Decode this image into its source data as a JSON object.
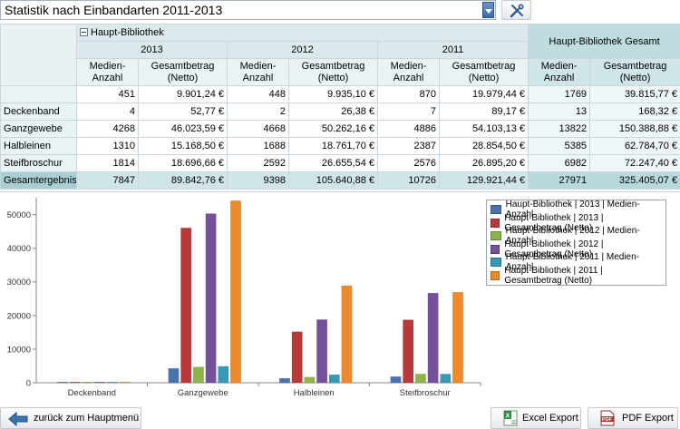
{
  "top": {
    "report_select_value": "Statistik nach Einbandarten 2011-2013",
    "tool_icon": "tools-icon"
  },
  "pivot": {
    "group_label": "Haupt-Bibliothek",
    "total_label": "Haupt-Bibliothek Gesamt",
    "years": [
      "2013",
      "2012",
      "2011"
    ],
    "col_count_label": "Medien-\nAnzahl",
    "col_amount_label": "Gesamtbetrag\n(Netto)",
    "rows": [
      {
        "label": "",
        "cells": [
          "451",
          "9.901,24 €",
          "448",
          "9.935,10 €",
          "870",
          "19.979,44 €",
          "1769",
          "39.815,77 €"
        ]
      },
      {
        "label": "Deckenband",
        "cells": [
          "4",
          "52,77 €",
          "2",
          "26,38 €",
          "7",
          "89,17 €",
          "13",
          "168,32 €"
        ]
      },
      {
        "label": "Ganzgewebe",
        "cells": [
          "4268",
          "46.023,59 €",
          "4668",
          "50.262,16 €",
          "4886",
          "54.103,13 €",
          "13822",
          "150.388,88 €"
        ]
      },
      {
        "label": "Halbleinen",
        "cells": [
          "1310",
          "15.168,50 €",
          "1688",
          "18.761,70 €",
          "2387",
          "28.854,50 €",
          "5385",
          "62.784,70 €"
        ]
      },
      {
        "label": "Steifbroschur",
        "cells": [
          "1814",
          "18.696,66 €",
          "2592",
          "26.655,54 €",
          "2576",
          "26.895,20 €",
          "6982",
          "72.247,40 €"
        ]
      }
    ],
    "grand": {
      "label": "Gesamtergebnis",
      "cells": [
        "7847",
        "89.842,76 €",
        "9398",
        "105.640,88 €",
        "10726",
        "129.921,44 €",
        "27971",
        "325.405,07 €"
      ]
    }
  },
  "chart_data": {
    "type": "bar",
    "categories": [
      "Deckenband",
      "Ganzgewebe",
      "Halbleinen",
      "Steifbroschur"
    ],
    "ylim": [
      0,
      55000
    ],
    "yticks": [
      0,
      10000,
      20000,
      30000,
      40000,
      50000
    ],
    "grid": false,
    "legend_position": "top-right",
    "series": [
      {
        "name": "Haupt-Bibliothek | 2013 | Medien-Anzahl",
        "color": "#4a72b0",
        "values": [
          4,
          4268,
          1310,
          1814
        ]
      },
      {
        "name": "Haupt-Bibliothek | 2013 | Gesamtbetrag (Netto)",
        "color": "#b9393b",
        "values": [
          52.77,
          46023.59,
          15168.5,
          18696.66
        ]
      },
      {
        "name": "Haupt-Bibliothek | 2012 | Medien-Anzahl",
        "color": "#8db34b",
        "values": [
          2,
          4668,
          1688,
          2592
        ]
      },
      {
        "name": "Haupt-Bibliothek | 2012 | Gesamtbetrag (Netto)",
        "color": "#74519a",
        "values": [
          26.38,
          50262.16,
          18761.7,
          26655.54
        ]
      },
      {
        "name": "Haupt-Bibliothek | 2011 | Medien-Anzahl",
        "color": "#3799b4",
        "values": [
          7,
          4886,
          2387,
          2576
        ]
      },
      {
        "name": "Haupt-Bibliothek | 2011 | Gesamtbetrag (Netto)",
        "color": "#ee8a2c",
        "values": [
          89.17,
          54103.13,
          28854.5,
          26895.2
        ]
      }
    ]
  },
  "bottom": {
    "back_label": "zurück zum Hauptmenü",
    "excel_label": "Excel Export",
    "pdf_label": "PDF Export"
  }
}
